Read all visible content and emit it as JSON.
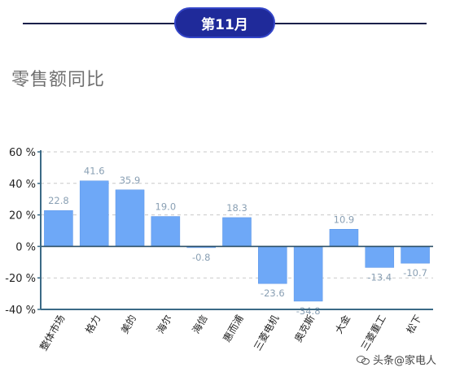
{
  "header": {
    "month_label": "第11月"
  },
  "watermark": {
    "text": "头条@家电人"
  },
  "chart_data": {
    "type": "bar",
    "title": "零售额同比",
    "categories": [
      "整体市场",
      "格力",
      "美的",
      "海尔",
      "海信",
      "惠而浦",
      "三菱电机",
      "奥克斯",
      "大金",
      "三菱重工",
      "松下"
    ],
    "values": [
      22.8,
      41.6,
      35.9,
      19.0,
      -0.8,
      18.3,
      -23.6,
      -34.8,
      10.9,
      -13.4,
      -10.7
    ],
    "value_labels": [
      "22.8",
      "41.6",
      "35.9",
      "19.0",
      "-0.8",
      "18.3",
      "-23.6",
      "-34.8",
      "10.9",
      "-13.4",
      "-10.7"
    ],
    "ylim": [
      -40,
      60
    ],
    "yticks": [
      60,
      40,
      20,
      0,
      -20,
      -40
    ],
    "ytick_labels": [
      "60 %",
      "40 %",
      "20 %",
      "0 %",
      "-20 %",
      "-40 %"
    ],
    "grid": true,
    "colors": {
      "bar": "#6ea8f7",
      "bar_stroke": "#5b95e6",
      "axis": "#3b6a86",
      "zero_line": "#2c4f66",
      "label": "#8aa0b4",
      "tick": "#222222",
      "grid": "#c9c9c9"
    }
  }
}
